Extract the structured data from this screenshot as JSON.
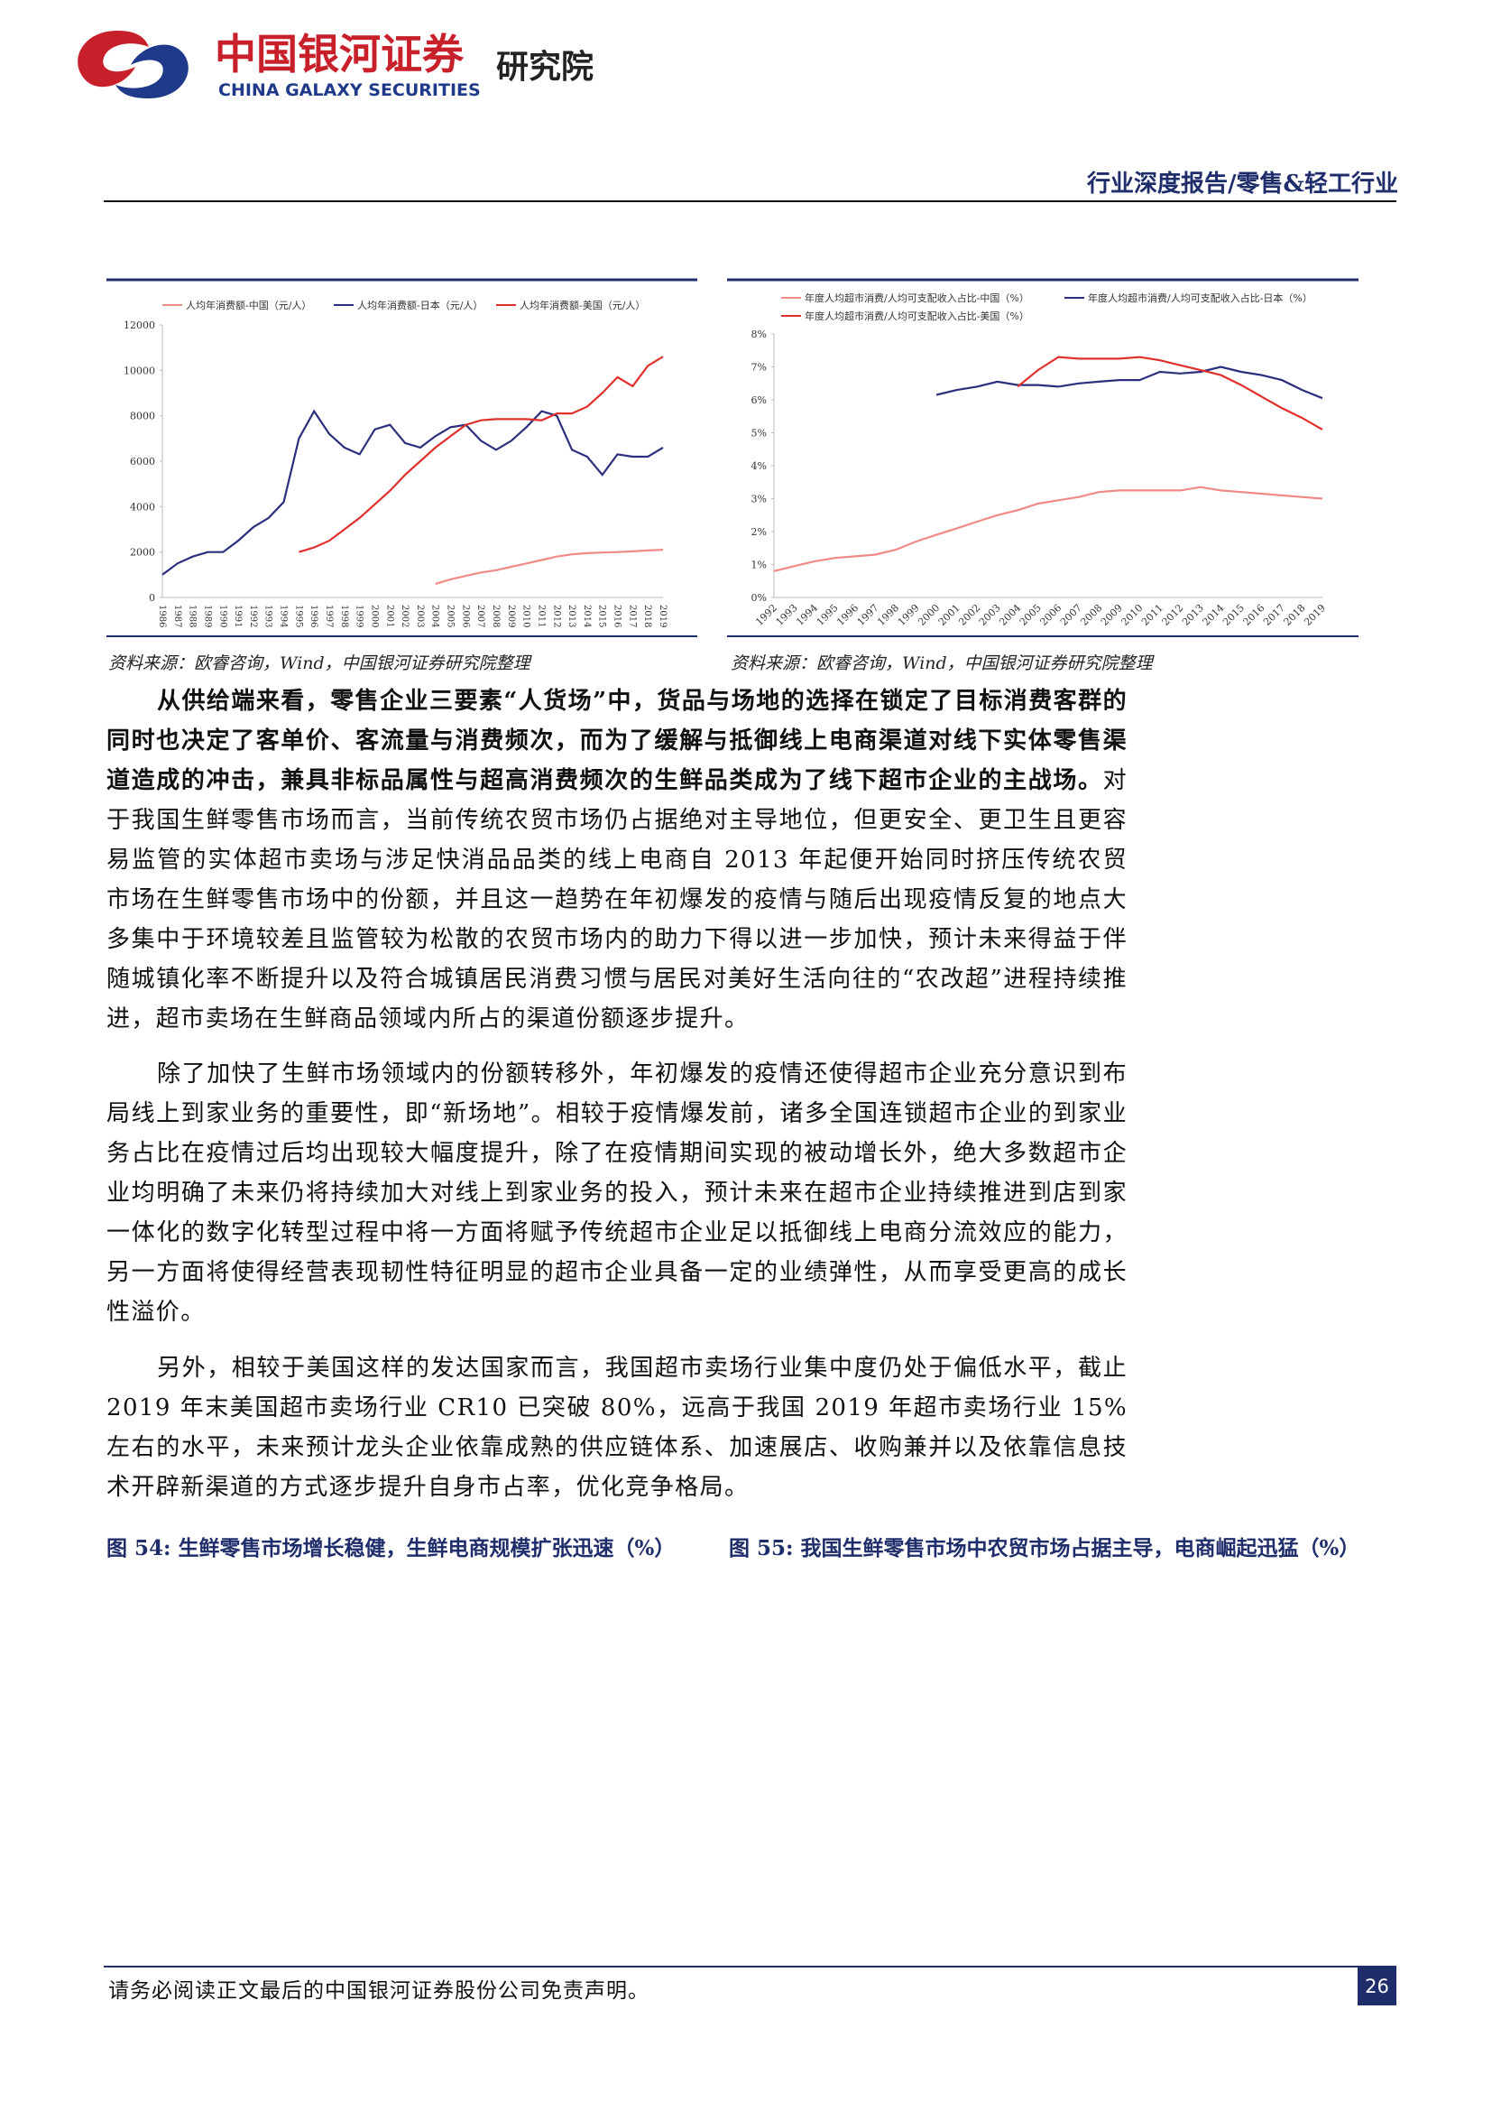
{
  "header": {
    "logo_cn": "中国银河证券",
    "logo_en": "CHINA GALAXY SECURITIES",
    "logo_sub": "研究院",
    "report_type": "行业深度报告/零售&轻工行业"
  },
  "chart_data": [
    {
      "type": "line",
      "categories": [
        "1986",
        "1987",
        "1988",
        "1989",
        "1990",
        "1991",
        "1992",
        "1993",
        "1994",
        "1995",
        "1996",
        "1997",
        "1998",
        "1999",
        "2000",
        "2001",
        "2002",
        "2003",
        "2004",
        "2005",
        "2006",
        "2007",
        "2008",
        "2009",
        "2010",
        "2011",
        "2012",
        "2013",
        "2014",
        "2015",
        "2016",
        "2017",
        "2018",
        "2019"
      ],
      "series": [
        {
          "name": "人均年消费额-中国（元/人）",
          "color": "#f08a84",
          "values": [
            null,
            null,
            null,
            null,
            null,
            null,
            null,
            null,
            null,
            null,
            null,
            null,
            null,
            null,
            null,
            null,
            null,
            null,
            600,
            800,
            950,
            1100,
            1200,
            1350,
            1500,
            1650,
            1800,
            1900,
            1950,
            1980,
            2000,
            2030,
            2070,
            2100
          ]
        },
        {
          "name": "人均年消费额-日本（元/人）",
          "color": "#2b2f7e",
          "values": [
            1000,
            1500,
            1800,
            2000,
            2000,
            2500,
            3100,
            3500,
            4200,
            7000,
            8200,
            7200,
            6600,
            6300,
            7400,
            7600,
            6800,
            6600,
            7100,
            7500,
            7600,
            6900,
            6500,
            6900,
            7500,
            8200,
            8000,
            6500,
            6200,
            5400,
            6300,
            6200,
            6200,
            6600
          ]
        },
        {
          "name": "人均年消费额-美国（元/人）",
          "color": "#e0302c",
          "values": [
            null,
            null,
            null,
            null,
            null,
            null,
            null,
            null,
            null,
            2000,
            2200,
            2500,
            3000,
            3500,
            4100,
            4700,
            5400,
            6000,
            6600,
            7100,
            7600,
            7800,
            7850,
            7850,
            7850,
            7800,
            8100,
            8100,
            8400,
            9000,
            9700,
            9300,
            10200,
            10600
          ]
        }
      ],
      "ylim": [
        0,
        12000
      ],
      "yticks": [
        0,
        2000,
        4000,
        6000,
        8000,
        10000,
        12000
      ],
      "grid": false,
      "source": "资料来源：欧睿咨询，Wind，中国银河证券研究院整理"
    },
    {
      "type": "line",
      "categories": [
        "1992",
        "1993",
        "1994",
        "1995",
        "1996",
        "1997",
        "1998",
        "1999",
        "2000",
        "2001",
        "2002",
        "2003",
        "2004",
        "2005",
        "2006",
        "2007",
        "2008",
        "2009",
        "2010",
        "2011",
        "2012",
        "2013",
        "2014",
        "2015",
        "2016",
        "2017",
        "2018",
        "2019"
      ],
      "series": [
        {
          "name": "年度人均超市消费/人均可支配收入占比-中国（%）",
          "color": "#f08a84",
          "values": [
            0.8,
            0.95,
            1.1,
            1.2,
            1.25,
            1.3,
            1.45,
            1.7,
            1.9,
            2.1,
            2.3,
            2.5,
            2.65,
            2.85,
            2.95,
            3.05,
            3.2,
            3.25,
            3.25,
            3.25,
            3.25,
            3.35,
            3.25,
            3.2,
            3.15,
            3.1,
            3.05,
            3.0
          ]
        },
        {
          "name": "年度人均超市消费/人均可支配收入占比-日本（%）",
          "color": "#2b2f7e",
          "values": [
            null,
            null,
            null,
            null,
            null,
            null,
            null,
            null,
            6.15,
            6.3,
            6.4,
            6.55,
            6.45,
            6.45,
            6.4,
            6.5,
            6.55,
            6.6,
            6.6,
            6.85,
            6.8,
            6.85,
            7.0,
            6.85,
            6.75,
            6.6,
            6.3,
            6.05
          ]
        },
        {
          "name": "年度人均超市消费/人均可支配收入占比-美国（%）",
          "color": "#e0302c",
          "values": [
            null,
            null,
            null,
            null,
            null,
            null,
            null,
            null,
            null,
            null,
            null,
            null,
            6.4,
            6.9,
            7.3,
            7.25,
            7.25,
            7.25,
            7.3,
            7.2,
            7.05,
            6.9,
            6.75,
            6.45,
            6.1,
            5.75,
            5.45,
            5.1
          ]
        }
      ],
      "ylim": [
        0,
        8
      ],
      "yticks": [
        {
          "value": 0,
          "label": "0%"
        },
        {
          "value": 1,
          "label": "1%"
        },
        {
          "value": 2,
          "label": "2%"
        },
        {
          "value": 3,
          "label": "3%"
        },
        {
          "value": 4,
          "label": "4%"
        },
        {
          "value": 5,
          "label": "5%"
        },
        {
          "value": 6,
          "label": "6%"
        },
        {
          "value": 7,
          "label": "7%"
        },
        {
          "value": 8,
          "label": "8%"
        }
      ],
      "grid": false,
      "source": "资料来源：欧睿咨询，Wind，中国银河证券研究院整理"
    }
  ],
  "paragraphs": [
    {
      "bold": "从供给端来看，零售企业三要素“人货场”中，货品与场地的选择在锁定了目标消费客群的同时也决定了客单价、客流量与消费频次，而为了缓解与抵御线上电商渠道对线下实体零售渠道造成的冲击，兼具非标品属性与超高消费频次的生鲜品类成为了线下超市企业的主战场。",
      "text": "对于我国生鲜零售市场而言，当前传统农贸市场仍占据绝对主导地位，但更安全、更卫生且更容易监管的实体超市卖场与涉足快消品品类的线上电商自 2013 年起便开始同时挤压传统农贸市场在生鲜零售市场中的份额，并且这一趋势在年初爆发的疫情与随后出现疫情反复的地点大多集中于环境较差且监管较为松散的农贸市场内的助力下得以进一步加快，预计未来得益于伴随城镇化率不断提升以及符合城镇居民消费习惯与居民对美好生活向往的“农改超”进程持续推进，超市卖场在生鲜商品领域内所占的渠道份额逐步提升。"
    },
    "除了加快了生鲜市场领域内的份额转移外，年初爆发的疫情还使得超市企业充分意识到布局线上到家业务的重要性，即“新场地”。相较于疫情爆发前，诸多全国连锁超市企业的到家业务占比在疫情过后均出现较大幅度提升，除了在疫情期间实现的被动增长外，绝大多数超市企业均明确了未来仍将持续加大对线上到家业务的投入，预计未来在超市企业持续推进到店到家一体化的数字化转型过程中将一方面将赋予传统超市企业足以抵御线上电商分流效应的能力，另一方面将使得经营表现韧性特征明显的超市企业具备一定的业绩弹性，从而享受更高的成长性溢价。",
    "另外，相较于美国这样的发达国家而言，我国超市卖场行业集中度仍处于偏低水平，截止 2019 年末美国超市卖场行业 CR10 已突破 80%，远高于我国 2019 年超市卖场行业 15%左右的水平，未来预计龙头企业依靠成熟的供应链体系、加速展店、收购兼并以及依靠信息技术开辟新渠道的方式逐步提升自身市占率，优化竞争格局。"
  ],
  "captions": [
    "图 54: 生鲜零售市场增长稳健，生鲜电商规模扩张迅速（%）",
    "图 55: 我国生鲜零售市场中农贸市场占据主导，电商崛起迅猛（%）"
  ],
  "footer": {
    "disclaimer": "请务必阅读正文最后的中国银河证券股份公司免责声明。",
    "page": "26"
  }
}
